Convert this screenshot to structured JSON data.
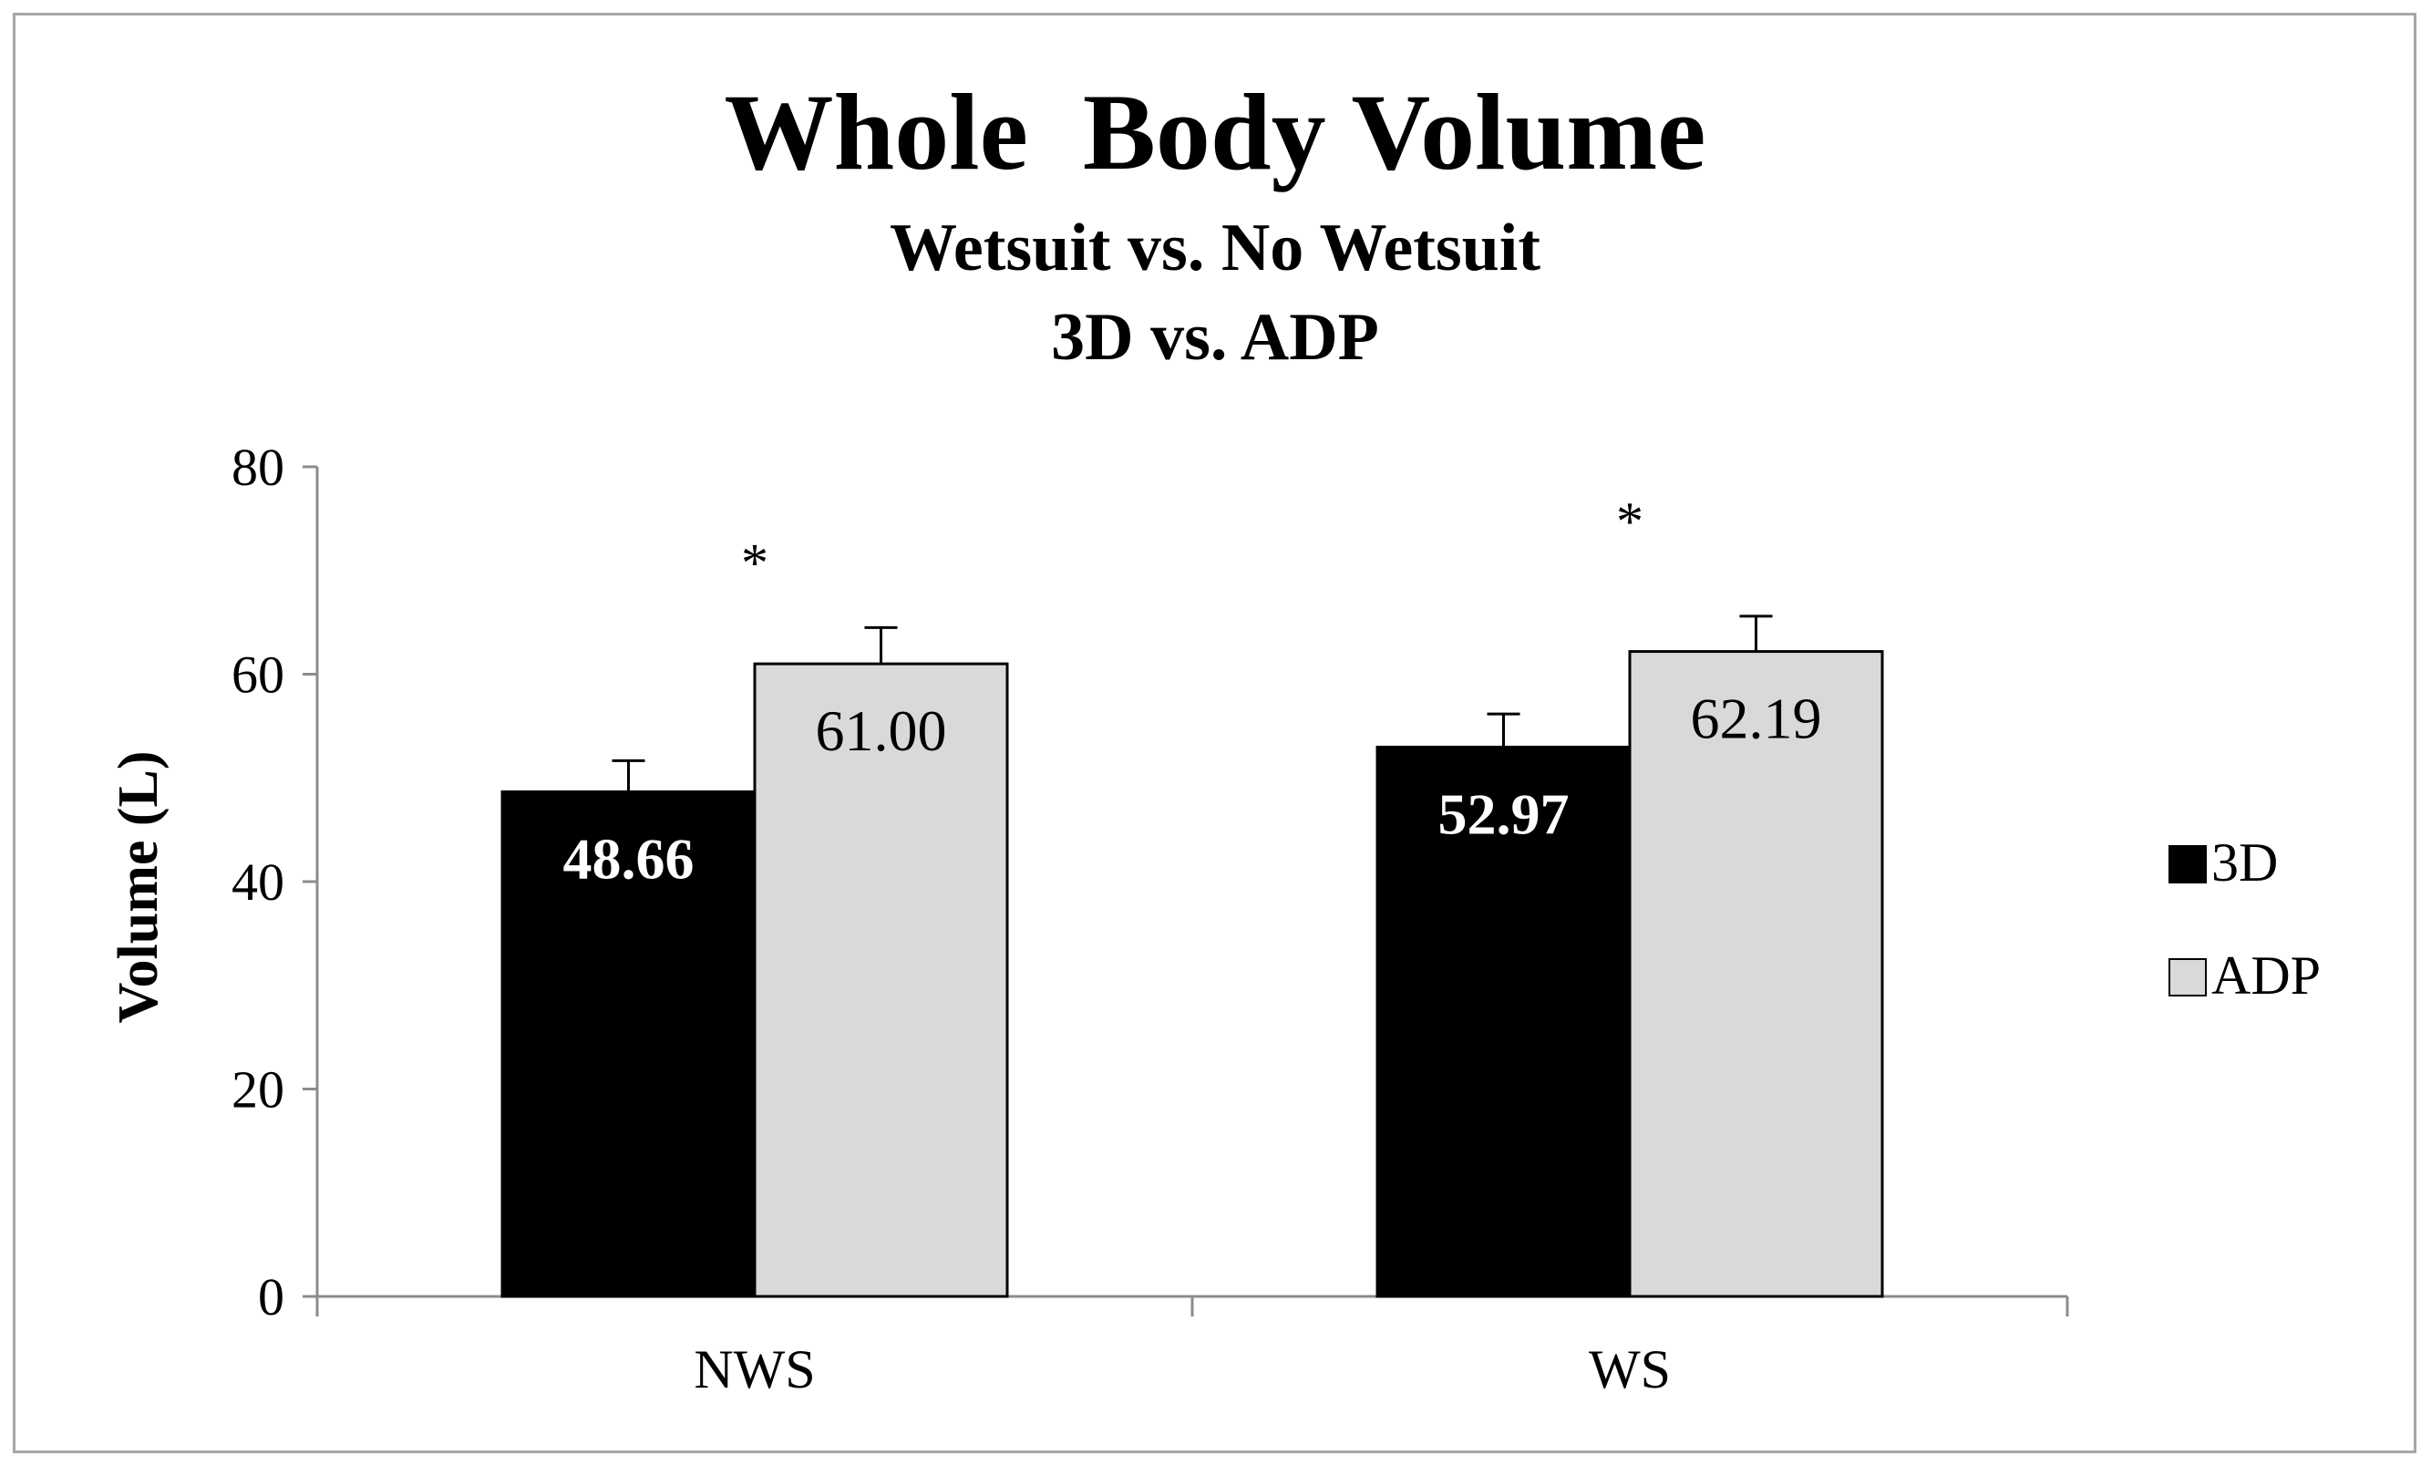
{
  "chart_data": {
    "type": "bar",
    "title": "Whole  Body Volume",
    "subtitle_lines": [
      "Wetsuit vs. No Wetsuit",
      "3D vs. ADP"
    ],
    "ylabel": "Volume (L)",
    "xlabel": "",
    "ylim": [
      0,
      80
    ],
    "yticks": [
      "0",
      "20",
      "40",
      "60",
      "80"
    ],
    "categories": [
      "NWS",
      "WS"
    ],
    "series": [
      {
        "name": "3D",
        "values": [
          48.66,
          52.97
        ],
        "labels": [
          "48.66",
          "52.97"
        ],
        "error": [
          3.0,
          3.2
        ],
        "color": "#000000",
        "label_color": "#ffffff"
      },
      {
        "name": "ADP",
        "values": [
          61.0,
          62.19
        ],
        "labels": [
          "61.00",
          "62.19"
        ],
        "error": [
          3.5,
          3.4
        ],
        "color": "#d9d9d9",
        "label_color": "#000000"
      }
    ],
    "annotations": [
      {
        "category": "NWS",
        "text": "*",
        "y": 72.5
      },
      {
        "category": "WS",
        "text": "*",
        "y": 76.5
      }
    ],
    "grid": false,
    "legend_position": "right"
  }
}
